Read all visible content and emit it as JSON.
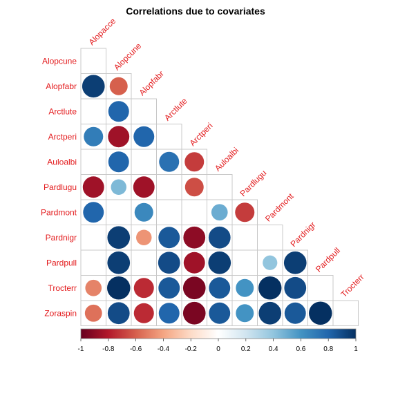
{
  "chart_data": {
    "type": "heatmap",
    "title": "Correlations due to covariates",
    "label_color": "#e31a1c",
    "columns": [
      "Alopacce",
      "Alopcune",
      "Alopfabr",
      "Arctlute",
      "Arctperi",
      "Auloalbi",
      "Pardlugu",
      "Pardmont",
      "Pardnigr",
      "Pardpull",
      "Trocterr"
    ],
    "rows": [
      "Alopcune",
      "Alopfabr",
      "Arctlute",
      "Arctperi",
      "Auloalbi",
      "Pardlugu",
      "Pardmont",
      "Pardnigr",
      "Pardpull",
      "Trocterr",
      "Zoraspin"
    ],
    "values": [
      [
        0,
        null,
        null,
        null,
        null,
        null,
        null,
        null,
        null,
        null,
        null
      ],
      [
        0.95,
        -0.6,
        null,
        null,
        null,
        null,
        null,
        null,
        null,
        null,
        null
      ],
      [
        0,
        0.8,
        0,
        null,
        null,
        null,
        null,
        null,
        null,
        null,
        null
      ],
      [
        0.7,
        -0.85,
        0.8,
        0,
        null,
        null,
        null,
        null,
        null,
        null,
        null
      ],
      [
        0,
        0.8,
        0,
        0.75,
        -0.7,
        null,
        null,
        null,
        null,
        null,
        null
      ],
      [
        -0.85,
        0.45,
        -0.85,
        0,
        -0.65,
        0,
        null,
        null,
        null,
        null,
        null
      ],
      [
        0.8,
        0,
        0.65,
        0,
        0,
        0.5,
        -0.7,
        null,
        null,
        null,
        null
      ],
      [
        0,
        0.95,
        -0.45,
        0.85,
        -0.9,
        0.9,
        0,
        0,
        null,
        null,
        null
      ],
      [
        0,
        0.95,
        0,
        0.9,
        -0.85,
        0.95,
        0,
        0.4,
        0.95,
        null,
        null
      ],
      [
        -0.5,
        1.0,
        -0.75,
        0.85,
        -0.95,
        0.85,
        0.6,
        1.0,
        0.9,
        null,
        null
      ],
      [
        -0.55,
        0.9,
        -0.75,
        0.8,
        -0.95,
        0.85,
        0.6,
        0.95,
        0.85,
        1.0,
        null
      ]
    ],
    "colorbar": {
      "range": [
        -1,
        1
      ],
      "ticks": [
        "-1",
        "-0.8",
        "-0.6",
        "-0.4",
        "-0.2",
        "0",
        "0.2",
        "0.4",
        "0.6",
        "0.8",
        "1"
      ],
      "colors": [
        "#67001f",
        "#b2182b",
        "#d6604d",
        "#f4a582",
        "#fddbc7",
        "#ffffff",
        "#d1e5f0",
        "#92c5de",
        "#4393c3",
        "#2166ac",
        "#053061"
      ]
    }
  }
}
